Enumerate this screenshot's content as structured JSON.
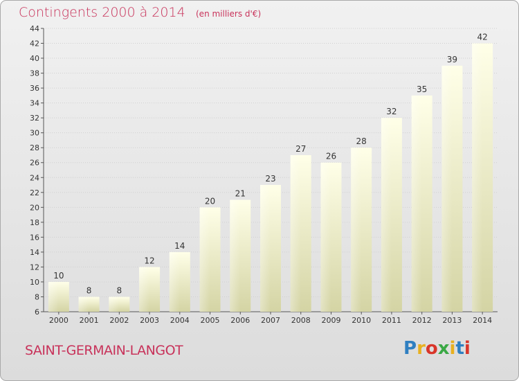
{
  "header": {
    "title": "Contingents 2000 à 2014",
    "subtitle": "(en milliers d'€)"
  },
  "footer": {
    "commune": "SAINT-GERMAIN-LANGOT",
    "logo_text": "Proxiti",
    "logo_colors": [
      "#2f7fc1",
      "#e8b020",
      "#d9362a",
      "#3aa845",
      "#e8b020",
      "#2f7fc1",
      "#d9362a"
    ]
  },
  "colors": {
    "accent": "#c8325a",
    "bar_fill_top": "#ffffe6",
    "bar_fill_bottom": "#d6d6a6",
    "grid": "#d0d0d0"
  },
  "chart_data": {
    "type": "bar",
    "title": "Contingents 2000 à 2014",
    "subtitle": "(en milliers d'€)",
    "categories": [
      "2000",
      "2001",
      "2002",
      "2003",
      "2004",
      "2005",
      "2006",
      "2007",
      "2008",
      "2009",
      "2010",
      "2011",
      "2012",
      "2013",
      "2014"
    ],
    "values": [
      10,
      8,
      8,
      12,
      14,
      20,
      21,
      23,
      27,
      26,
      28,
      32,
      35,
      39,
      42
    ],
    "ylim": [
      6,
      44
    ],
    "yticks": [
      6,
      8,
      10,
      12,
      14,
      16,
      18,
      20,
      22,
      24,
      26,
      28,
      30,
      32,
      34,
      36,
      38,
      40,
      42,
      44
    ],
    "grid": true,
    "data_labels": true
  }
}
